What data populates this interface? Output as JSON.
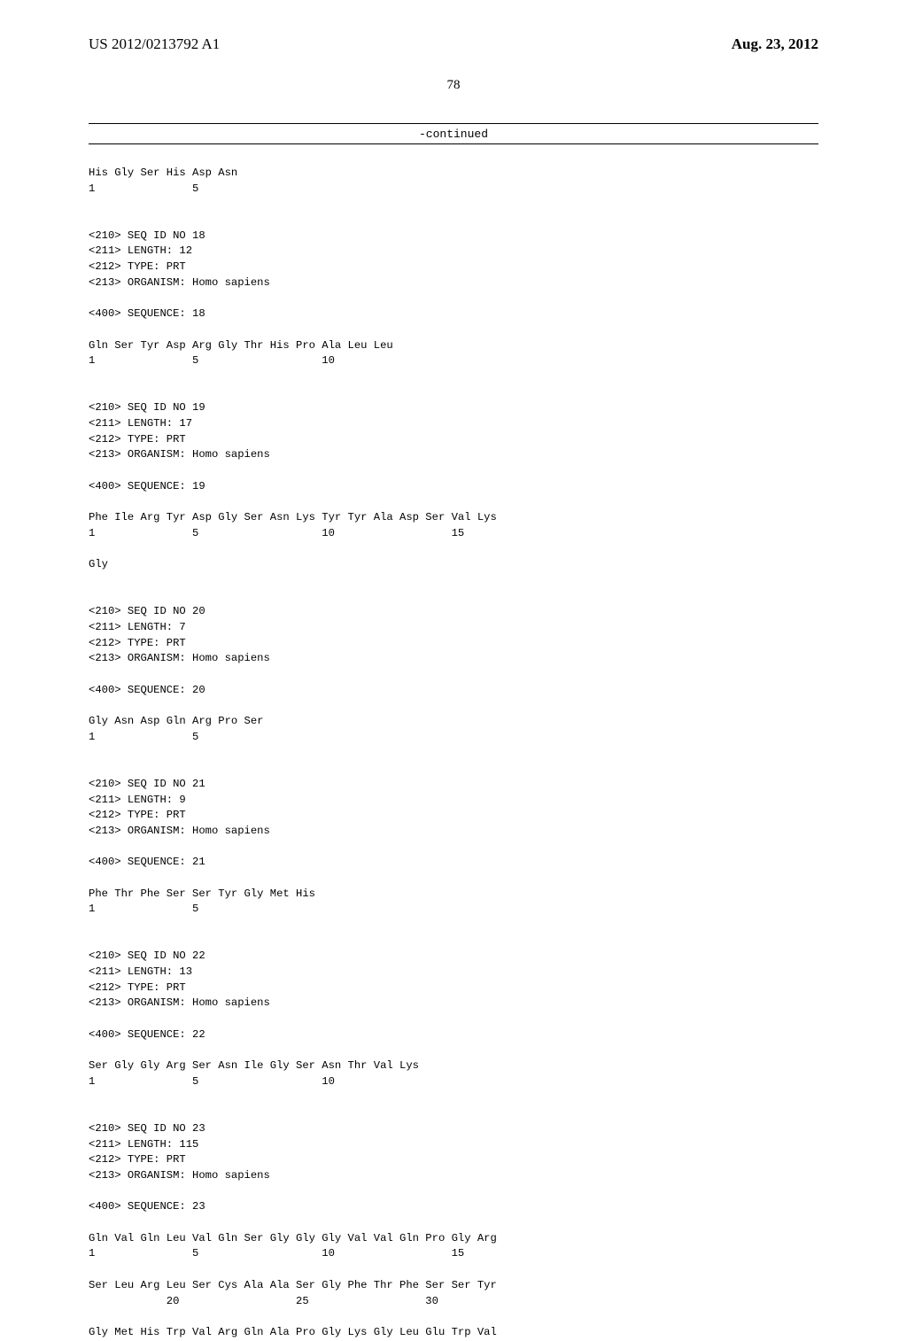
{
  "header": {
    "pub_number": "US 2012/0213792 A1",
    "pub_date": "Aug. 23, 2012"
  },
  "page_number": "78",
  "continued_label": "-continued",
  "seq_text": "His Gly Ser His Asp Asn\n1               5\n\n\n<210> SEQ ID NO 18\n<211> LENGTH: 12\n<212> TYPE: PRT\n<213> ORGANISM: Homo sapiens\n\n<400> SEQUENCE: 18\n\nGln Ser Tyr Asp Arg Gly Thr His Pro Ala Leu Leu\n1               5                   10\n\n\n<210> SEQ ID NO 19\n<211> LENGTH: 17\n<212> TYPE: PRT\n<213> ORGANISM: Homo sapiens\n\n<400> SEQUENCE: 19\n\nPhe Ile Arg Tyr Asp Gly Ser Asn Lys Tyr Tyr Ala Asp Ser Val Lys\n1               5                   10                  15\n\nGly\n\n\n<210> SEQ ID NO 20\n<211> LENGTH: 7\n<212> TYPE: PRT\n<213> ORGANISM: Homo sapiens\n\n<400> SEQUENCE: 20\n\nGly Asn Asp Gln Arg Pro Ser\n1               5\n\n\n<210> SEQ ID NO 21\n<211> LENGTH: 9\n<212> TYPE: PRT\n<213> ORGANISM: Homo sapiens\n\n<400> SEQUENCE: 21\n\nPhe Thr Phe Ser Ser Tyr Gly Met His\n1               5\n\n\n<210> SEQ ID NO 22\n<211> LENGTH: 13\n<212> TYPE: PRT\n<213> ORGANISM: Homo sapiens\n\n<400> SEQUENCE: 22\n\nSer Gly Gly Arg Ser Asn Ile Gly Ser Asn Thr Val Lys\n1               5                   10\n\n\n<210> SEQ ID NO 23\n<211> LENGTH: 115\n<212> TYPE: PRT\n<213> ORGANISM: Homo sapiens\n\n<400> SEQUENCE: 23\n\nGln Val Gln Leu Val Gln Ser Gly Gly Gly Val Val Gln Pro Gly Arg\n1               5                   10                  15\n\nSer Leu Arg Leu Ser Cys Ala Ala Ser Gly Phe Thr Phe Ser Ser Tyr\n            20                  25                  30\n\nGly Met His Trp Val Arg Gln Ala Pro Gly Lys Gly Leu Glu Trp Val"
}
